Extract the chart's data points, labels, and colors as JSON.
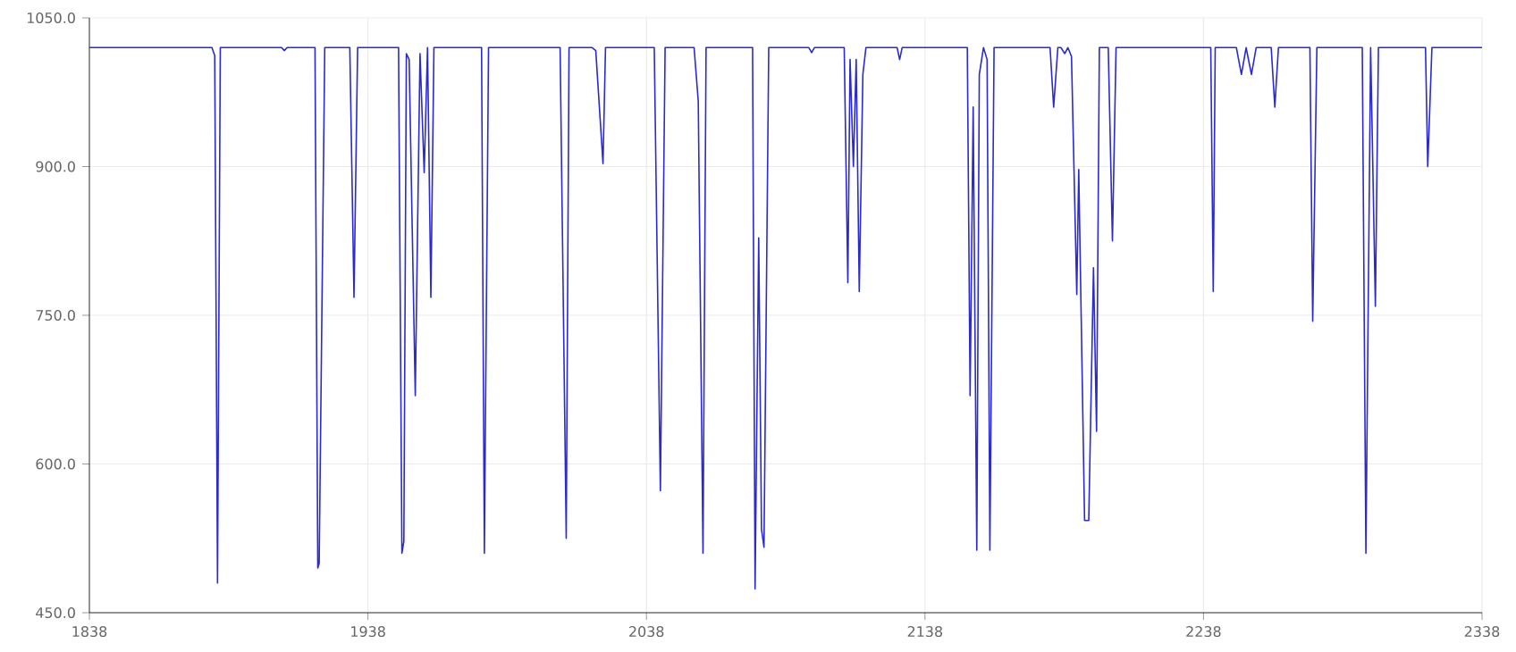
{
  "chart_data": {
    "type": "line",
    "color": "#2a2ad0",
    "grid": true,
    "xlim": [
      1838,
      2338
    ],
    "xticks": [
      1838,
      1938,
      2038,
      2138,
      2238,
      2338
    ],
    "ylim": [
      450,
      1050
    ],
    "yticks": [
      {
        "value": 450,
        "label": "450.0"
      },
      {
        "value": 600,
        "label": "600.0"
      },
      {
        "value": 750,
        "label": "750.0"
      },
      {
        "value": 900,
        "label": "900.0"
      },
      {
        "value": 1050,
        "label": "1050.0"
      }
    ],
    "x": [
      1838,
      1882,
      1883,
      1884,
      1885,
      1907,
      1908,
      1909,
      1919,
      1920,
      1920.5,
      1922.5,
      1931.5,
      1933,
      1934.3,
      1949,
      1950.2,
      1950.9,
      1951.8,
      1952.8,
      1955,
      1956.7,
      1958.2,
      1959.4,
      1960.6,
      1961.7,
      1978.8,
      1979.8,
      1981.3,
      2007,
      2009.2,
      2010.2,
      2018.5,
      2019.8,
      2022.4,
      2023.3,
      2040.8,
      2043,
      2044.7,
      2055.1,
      2056.6,
      2058.3,
      2059.4,
      2076.1,
      2077,
      2078.3,
      2079.3,
      2080.2,
      2081.9,
      2096.3,
      2097.3,
      2098.3,
      2109,
      2110.3,
      2111.1,
      2112.3,
      2113.3,
      2114.4,
      2115.7,
      2116.8,
      2128,
      2128.9,
      2129.8,
      2153.2,
      2154.2,
      2155.3,
      2156.6,
      2157.5,
      2159,
      2160.3,
      2161.3,
      2162.8,
      2182.9,
      2184.2,
      2185.7,
      2186.8,
      2188.2,
      2189.3,
      2190.6,
      2192.5,
      2193.2,
      2195.3,
      2196.8,
      2198.5,
      2199.6,
      2200.6,
      2203.8,
      2205.3,
      2206.6,
      2240.6,
      2241.5,
      2242.2,
      2249.8,
      2251.6,
      2253.3,
      2255.2,
      2256.9,
      2262.3,
      2263.6,
      2264.9,
      2276.2,
      2277.2,
      2278.7,
      2295,
      2296.3,
      2298,
      2299.7,
      2300.8,
      2317.7,
      2318.5,
      2320,
      2338
    ],
    "values": [
      1020,
      1020,
      1012,
      480,
      1020,
      1020,
      1017,
      1020,
      1020,
      495,
      500,
      1020,
      1020,
      768,
      1020,
      1020,
      510,
      522,
      1014,
      1008,
      669,
      1014,
      894,
      1020,
      768,
      1020,
      1020,
      510,
      1020,
      1020,
      525,
      1020,
      1020,
      1017,
      903,
      1020,
      1020,
      573,
      1020,
      1020,
      966,
      510,
      1020,
      1020,
      474,
      828,
      534,
      516,
      1020,
      1020,
      1015,
      1020,
      1020,
      783,
      1008,
      900,
      1008,
      774,
      993,
      1020,
      1020,
      1008,
      1020,
      1020,
      669,
      960,
      513,
      993,
      1020,
      1008,
      513,
      1020,
      1020,
      960,
      1020,
      1020,
      1014,
      1020,
      1011,
      771,
      897,
      543,
      543,
      798,
      633,
      1020,
      1020,
      825,
      1020,
      1020,
      774,
      1020,
      1020,
      993,
      1020,
      993,
      1020,
      1020,
      960,
      1020,
      1020,
      744,
      1020,
      1020,
      510,
      1020,
      759,
      1020,
      1020,
      900,
      1020,
      1020
    ]
  }
}
